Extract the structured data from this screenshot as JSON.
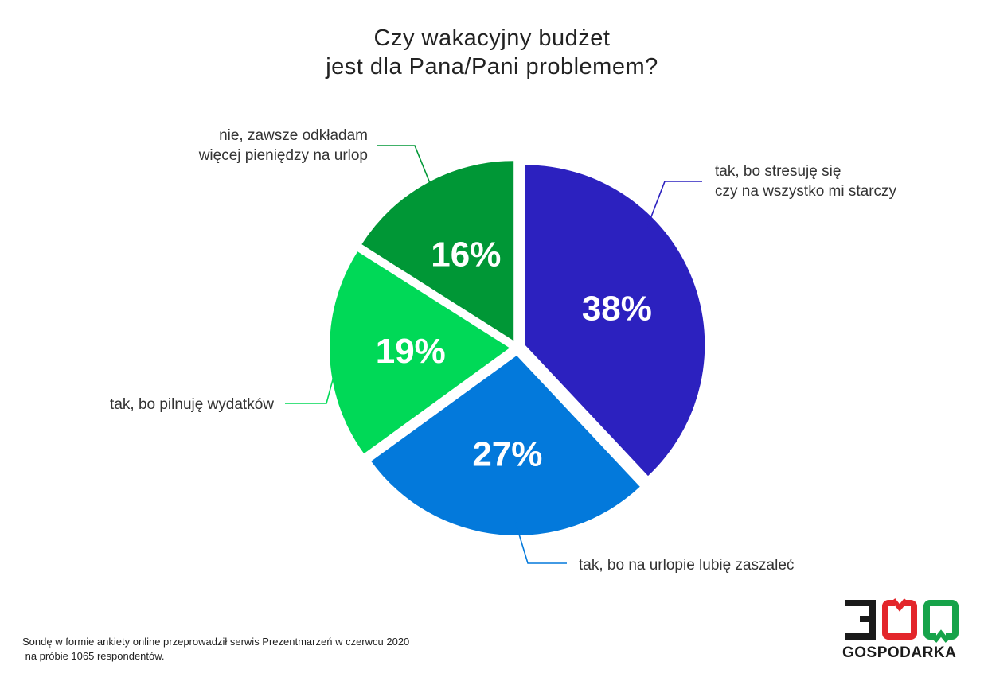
{
  "chart_data": {
    "type": "pie",
    "title": [
      "Czy wakacyjny budżet",
      "jest dla Pana/Pani problemem?"
    ],
    "slices": [
      {
        "label_lines": [
          "tak, bo stresuję się",
          "czy na wszystko mi starczy"
        ],
        "value": 38,
        "display": "38%",
        "color": "#2c21bf"
      },
      {
        "label_lines": [
          "tak, bo na urlopie lubię zaszaleć"
        ],
        "value": 27,
        "display": "27%",
        "color": "#0379db"
      },
      {
        "label_lines": [
          "tak, bo pilnuję wydatków"
        ],
        "value": 19,
        "display": "19%",
        "color": "#00d957"
      },
      {
        "label_lines": [
          "nie, zawsze odkładam",
          "więcej pieniędzy na urlop"
        ],
        "value": 16,
        "display": "16%",
        "color": "#009736"
      }
    ]
  },
  "footnote": {
    "line1": "Sondę w formie ankiety online przeprowadził serwis Prezentmarzeń w czerwcu 2020",
    "line2": " na próbie 1065 respondentów."
  },
  "logo": {
    "digits": "300",
    "text": "GOSPODARKA",
    "colors": {
      "three": "#1a1a1a",
      "zero1": "#e3262b",
      "zero2": "#16a34a"
    }
  }
}
